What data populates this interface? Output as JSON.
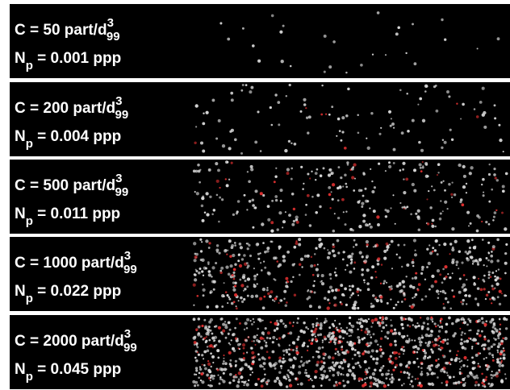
{
  "panels": [
    {
      "c_text": "C = 50 part/d",
      "c_sup": "3",
      "c_sub": "99",
      "n_text": "N",
      "n_sub": "p",
      "n_value": " = 0.001 ppp"
    },
    {
      "c_text": "C = 200 part/d",
      "c_sup": "3",
      "c_sub": "99",
      "n_text": "N",
      "n_sub": "p",
      "n_value": " = 0.004 ppp"
    },
    {
      "c_text": "C = 500 part/d",
      "c_sup": "3",
      "c_sub": "99",
      "n_text": "N",
      "n_sub": "p",
      "n_value": " = 0.011 ppp"
    },
    {
      "c_text": "C = 1000 part/d",
      "c_sup": "3",
      "c_sub": "99",
      "n_text": "N",
      "n_sub": "p",
      "n_value": " = 0.022 ppp"
    },
    {
      "c_text": "C = 2000 part/d",
      "c_sup": "3",
      "c_sub": "99",
      "n_text": "N",
      "n_sub": "p",
      "n_value": " = 0.045 ppp"
    }
  ]
}
